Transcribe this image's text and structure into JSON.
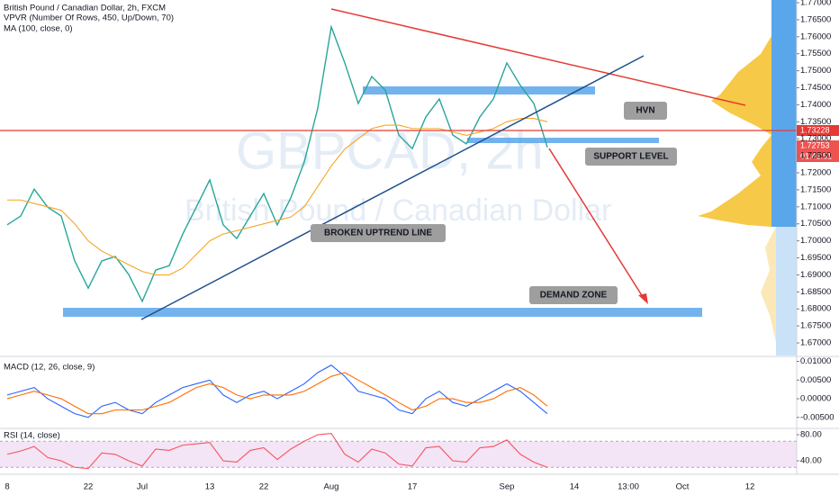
{
  "chart_data": [
    {
      "type": "line",
      "watermark": [
        "GBPCAD, 2h",
        "British Pound / Canadian Dollar"
      ],
      "indicator_label": "VPVR (Number Of Rows, 450, Up/Down, 70)",
      "annotations": [
        "HVN",
        "SUPPORT LEVEL",
        "BROKEN UPTREND LINE",
        "DEMAND ZONE"
      ],
      "price_tags": [
        "1.73228",
        "1.72753",
        "01:41:51"
      ],
      "categories": [
        "8",
        null,
        null,
        null,
        null,
        null,
        "22",
        null,
        null,
        null,
        "Jul",
        null,
        null,
        null,
        null,
        "13",
        null,
        null,
        null,
        "22",
        null,
        null,
        null,
        null,
        "Aug",
        null,
        null,
        null,
        null,
        null,
        "17",
        null,
        null,
        null,
        null,
        null,
        null,
        "Sep",
        null,
        null,
        null,
        null,
        "14",
        null,
        null,
        null,
        "13:00",
        null,
        null,
        null,
        "Oct",
        null,
        null,
        null,
        null,
        "12",
        null,
        null,
        null
      ],
      "series": [
        {
          "name": "British Pound / Canadian Dollar, 2h, FXCM",
          "color": "#26a69a",
          "values": [
            1.7047,
            1.7073,
            1.7152,
            1.7099,
            1.7073,
            1.6941,
            1.6861,
            1.6941,
            1.6954,
            1.6901,
            1.6822,
            1.6914,
            1.6927,
            1.702,
            1.7099,
            1.7179,
            1.7047,
            1.7007,
            1.7073,
            1.7139,
            1.7047,
            1.7126,
            1.7232,
            1.739,
            1.7629,
            1.7523,
            1.7404,
            1.7483,
            1.7443,
            1.7311,
            1.7271,
            1.7364,
            1.7417,
            1.7311,
            1.7285,
            1.7364,
            1.7417,
            1.7523,
            1.7457,
            1.7404,
            1.7275,
            null,
            null,
            null,
            null,
            null,
            null,
            null,
            null,
            null,
            null,
            null,
            null,
            null,
            null,
            null,
            null,
            null,
            null
          ]
        },
        {
          "name": "MA (100, close, 0)",
          "color": "#f5a623",
          "values": [
            1.712,
            1.712,
            1.711,
            1.71,
            1.709,
            1.705,
            1.7,
            1.697,
            1.695,
            1.693,
            1.691,
            1.69,
            1.69,
            1.692,
            1.696,
            1.7,
            1.702,
            1.703,
            1.704,
            1.705,
            1.706,
            1.707,
            1.71,
            1.716,
            1.722,
            1.727,
            1.73,
            1.733,
            1.734,
            1.734,
            1.733,
            1.733,
            1.733,
            1.732,
            1.731,
            1.732,
            1.733,
            1.735,
            1.736,
            1.736,
            1.735,
            null,
            null,
            null,
            null,
            null,
            null,
            null,
            null,
            null,
            null,
            null,
            null,
            null,
            null,
            null,
            null,
            null,
            null
          ]
        }
      ],
      "ylim": [
        1.6663,
        1.7708
      ],
      "yticks": [
        {
          "value": 1.67,
          "label": "1.67000"
        },
        {
          "value": 1.675,
          "label": "1.67500"
        },
        {
          "value": 1.68,
          "label": "1.68000"
        },
        {
          "value": 1.685,
          "label": "1.68500"
        },
        {
          "value": 1.69,
          "label": "1.69000"
        },
        {
          "value": 1.695,
          "label": "1.69500"
        },
        {
          "value": 1.7,
          "label": "1.70000"
        },
        {
          "value": 1.705,
          "label": "1.70500"
        },
        {
          "value": 1.71,
          "label": "1.71000"
        },
        {
          "value": 1.715,
          "label": "1.71500"
        },
        {
          "value": 1.72,
          "label": "1.72000"
        },
        {
          "value": 1.725,
          "label": "1.72500"
        },
        {
          "value": 1.73,
          "label": "1.73000"
        },
        {
          "value": 1.735,
          "label": "1.73500"
        },
        {
          "value": 1.74,
          "label": "1.74000"
        },
        {
          "value": 1.745,
          "label": "1.74500"
        },
        {
          "value": 1.75,
          "label": "1.75000"
        },
        {
          "value": 1.755,
          "label": "1.75500"
        },
        {
          "value": 1.76,
          "label": "1.76000"
        },
        {
          "value": 1.765,
          "label": "1.76500"
        },
        {
          "value": 1.77,
          "label": "1.77000"
        }
      ],
      "grid": false
    },
    {
      "type": "line",
      "title": "MACD (12, 26, close, 9)",
      "series": [
        {
          "color": "#2962ff",
          "values": [
            0.001,
            0.002,
            0.003,
            0.0,
            -0.002,
            -0.004,
            -0.005,
            -0.002,
            -0.001,
            -0.003,
            -0.004,
            -0.001,
            0.001,
            0.003,
            0.004,
            0.005,
            0.001,
            -0.001,
            0.001,
            0.002,
            0.0,
            0.002,
            0.004,
            0.007,
            0.009,
            0.006,
            0.002,
            0.001,
            0.0,
            -0.003,
            -0.004,
            0.0,
            0.002,
            -0.001,
            -0.002,
            0.0,
            0.002,
            0.004,
            0.002,
            -0.001,
            -0.004
          ]
        },
        {
          "color": "#ff6d00",
          "values": [
            0.0,
            0.001,
            0.002,
            0.001,
            0.0,
            -0.002,
            -0.004,
            -0.004,
            -0.003,
            -0.003,
            -0.003,
            -0.002,
            -0.001,
            0.001,
            0.003,
            0.004,
            0.003,
            0.001,
            0.0,
            0.001,
            0.001,
            0.001,
            0.002,
            0.004,
            0.006,
            0.007,
            0.005,
            0.003,
            0.001,
            -0.001,
            -0.003,
            -0.002,
            0.0,
            0.0,
            -0.001,
            -0.001,
            0.0,
            0.002,
            0.003,
            0.001,
            -0.002
          ]
        }
      ],
      "ylim": [
        -0.0077,
        0.0111
      ],
      "yticks": [
        {
          "value": 0.01,
          "label": "0.01000"
        },
        {
          "value": 0.005,
          "label": "0.00500"
        },
        {
          "value": 0,
          "label": "0.00000"
        },
        {
          "value": -0.005,
          "label": "-0.00500"
        }
      ],
      "grid": false
    },
    {
      "type": "line",
      "title": "RSI (14, close)",
      "series": [
        {
          "color": "#f7525f",
          "values": [
            50,
            55,
            62,
            45,
            40,
            30,
            28,
            52,
            50,
            40,
            32,
            58,
            56,
            64,
            66,
            68,
            40,
            38,
            56,
            60,
            42,
            58,
            70,
            80,
            82,
            50,
            38,
            58,
            52,
            35,
            32,
            60,
            62,
            40,
            38,
            60,
            62,
            72,
            50,
            38,
            30
          ]
        }
      ],
      "band": [
        30,
        70
      ],
      "ylim": [
        22.1,
        88.3
      ],
      "yticks": [
        {
          "value": 80,
          "label": "80.00"
        },
        {
          "value": 40,
          "label": "40.00"
        }
      ],
      "grid": false
    }
  ]
}
